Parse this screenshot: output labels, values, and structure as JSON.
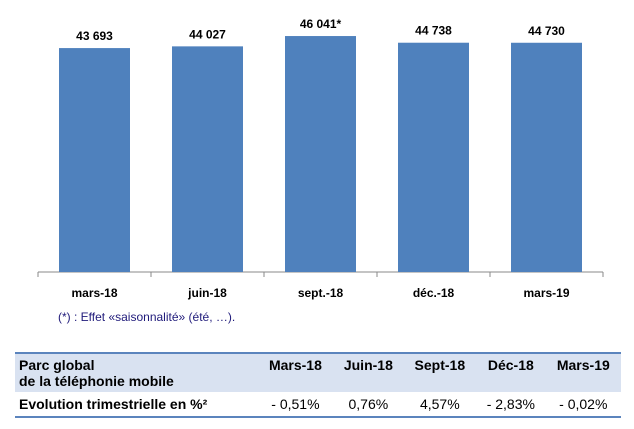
{
  "chart_data": {
    "type": "bar",
    "categories": [
      "mars-18",
      "juin-18",
      "sept.-18",
      "déc.-18",
      "mars-19"
    ],
    "values": [
      43693,
      44027,
      46041,
      44738,
      44730
    ],
    "data_labels": [
      "43 693",
      "44 027",
      "46 041*",
      "44 738",
      "44 730"
    ],
    "ylim": [
      0,
      48000
    ],
    "grid": false,
    "bar_color": "#4f81bd"
  },
  "note": "(*) : Effet «saisonnalité» (été, …).",
  "table": {
    "header_line1": "Parc global",
    "header_line2": "de la téléphonie mobile",
    "columns": [
      "Mars-18",
      "Juin-18",
      "Sept-18",
      "Déc-18",
      "Mars-19"
    ],
    "row_label": "Evolution trimestrielle en %²",
    "values": [
      "- 0,51%",
      "0,76%",
      "4,57%",
      "- 2,83%",
      "- 0,02%"
    ]
  }
}
